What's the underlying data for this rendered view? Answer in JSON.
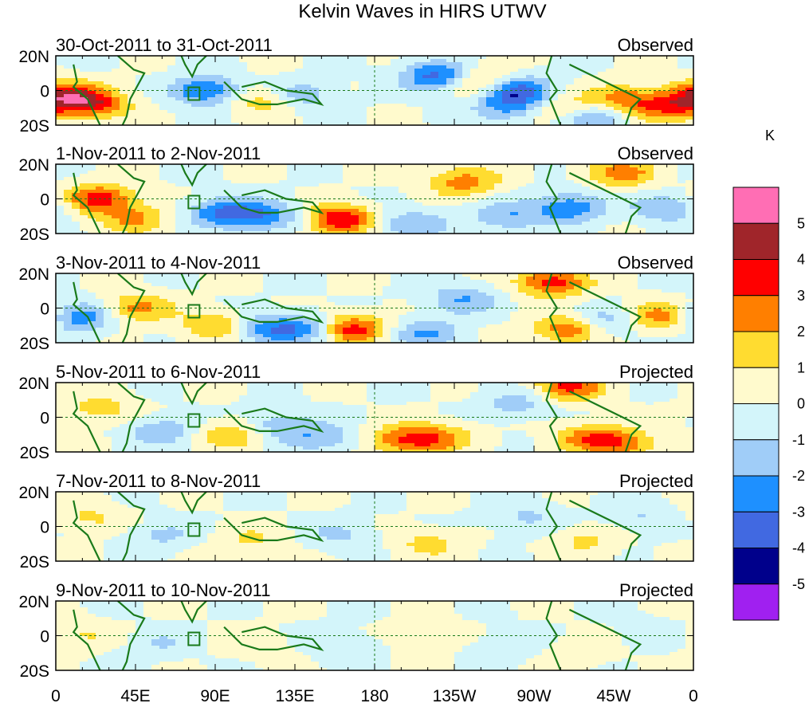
{
  "chart_data": {
    "type": "heatmap",
    "title": "Kelvin Waves in HIRS UTWV",
    "units": "K",
    "x_ticks": [
      "0",
      "45E",
      "90E",
      "135E",
      "180",
      "135W",
      "90W",
      "45W",
      "0"
    ],
    "y_ticks": [
      "20N",
      "0",
      "20S"
    ],
    "levels": [
      "-5",
      "-4",
      "-3",
      "-2",
      "-1",
      "0",
      "1",
      "2",
      "3",
      "4",
      "5"
    ],
    "colors": [
      "#a020f0",
      "#00008b",
      "#4169e1",
      "#1e90ff",
      "#a0cdf8",
      "#d3f5fa",
      "#fffacd",
      "#ffdc30",
      "#ff7f00",
      "#ff0000",
      "#a0252a",
      "#ff6eb4"
    ],
    "panels": [
      {
        "period": "30-Oct-2011 to 31-Oct-2011",
        "label": "Observed",
        "blobs": [
          [
            5,
            -3,
            3.5
          ],
          [
            22,
            -8,
            3
          ],
          [
            85,
            0,
            -3.2
          ],
          [
            120,
            -5,
            2.5
          ],
          [
            135,
            -3,
            -2.5
          ],
          [
            215,
            8,
            -3.5
          ],
          [
            240,
            5,
            2.5
          ],
          [
            255,
            -10,
            -2
          ],
          [
            260,
            0,
            -3.8
          ],
          [
            290,
            -12,
            2.8
          ],
          [
            300,
            -15,
            -3.5
          ],
          [
            320,
            -5,
            2.5
          ],
          [
            345,
            -10,
            2.5
          ]
        ]
      },
      {
        "period": "1-Nov-2011 to 2-Nov-2011",
        "label": "Observed",
        "blobs": [
          [
            25,
            0,
            3.5
          ],
          [
            45,
            -12,
            2
          ],
          [
            95,
            -8,
            -3
          ],
          [
            120,
            -10,
            -2.5
          ],
          [
            160,
            -12,
            4
          ],
          [
            200,
            -15,
            -2
          ],
          [
            230,
            10,
            2.5
          ],
          [
            255,
            -10,
            -2
          ],
          [
            290,
            -5,
            -2.8
          ],
          [
            320,
            15,
            2.5
          ],
          [
            345,
            -5,
            -2
          ]
        ]
      },
      {
        "period": "3-Nov-2011 to 4-Nov-2011",
        "label": "Observed",
        "blobs": [
          [
            15,
            -5,
            -2.8
          ],
          [
            45,
            0,
            2.5
          ],
          [
            90,
            -10,
            2
          ],
          [
            120,
            -12,
            -2.5
          ],
          [
            145,
            -12,
            -2.5
          ],
          [
            165,
            -12,
            4
          ],
          [
            210,
            -15,
            -2
          ],
          [
            230,
            5,
            -2
          ],
          [
            280,
            15,
            3.5
          ],
          [
            290,
            -12,
            3
          ],
          [
            310,
            -8,
            -2
          ],
          [
            340,
            -5,
            2.5
          ]
        ]
      },
      {
        "period": "5-Nov-2011 to 6-Nov-2011",
        "label": "Projected",
        "blobs": [
          [
            25,
            5,
            1.5
          ],
          [
            60,
            -8,
            -1.8
          ],
          [
            100,
            -10,
            2
          ],
          [
            125,
            -5,
            -1.8
          ],
          [
            150,
            -12,
            -1.8
          ],
          [
            195,
            -13,
            2.5
          ],
          [
            215,
            -12,
            2.3
          ],
          [
            260,
            8,
            -1.5
          ],
          [
            290,
            18,
            3.2
          ],
          [
            300,
            -12,
            2.2
          ],
          [
            320,
            -15,
            2.5
          ]
        ]
      },
      {
        "period": "7-Nov-2011 to 8-Nov-2011",
        "label": "Projected",
        "blobs": [
          [
            20,
            5,
            1.2
          ],
          [
            60,
            -5,
            -1.2
          ],
          [
            110,
            -8,
            1.2
          ],
          [
            160,
            -5,
            -1.2
          ],
          [
            210,
            -10,
            1.3
          ],
          [
            265,
            5,
            -1.2
          ],
          [
            300,
            -8,
            1.2
          ],
          [
            330,
            5,
            -1.1
          ]
        ]
      },
      {
        "period": "9-Nov-2011 to 10-Nov-2011",
        "label": "Projected",
        "blobs": [
          [
            15,
            0,
            1
          ],
          [
            60,
            -5,
            -1
          ],
          [
            110,
            -5,
            0.9
          ],
          [
            160,
            -5,
            -0.9
          ],
          [
            210,
            0,
            0.9
          ],
          [
            255,
            -5,
            -0.8
          ],
          [
            300,
            -8,
            0.9
          ],
          [
            335,
            0,
            -0.8
          ]
        ]
      }
    ]
  }
}
